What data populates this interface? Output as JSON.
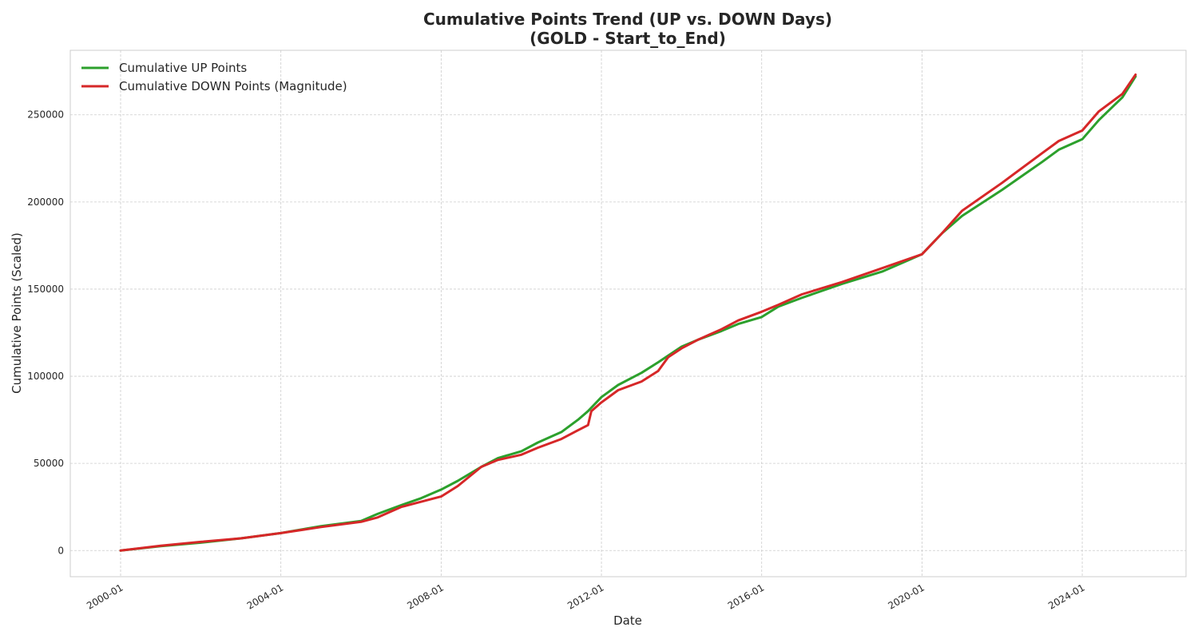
{
  "chart_data": {
    "type": "line",
    "title": "Cumulative Points Trend (UP vs. DOWN Days)",
    "subtitle": "(GOLD - Start_to_End)",
    "xlabel": "Date",
    "ylabel": "Cumulative Points (Scaled)",
    "x_range": [
      "2000-01-01",
      "2025-06-15"
    ],
    "ylim": [
      -15000,
      287000
    ],
    "grid": true,
    "legend_position": "top-left",
    "x_ticks": [
      {
        "date": "2000-01-01",
        "label": "2000-01"
      },
      {
        "date": "2004-01-01",
        "label": "2004-01"
      },
      {
        "date": "2008-01-01",
        "label": "2008-01"
      },
      {
        "date": "2012-01-01",
        "label": "2012-01"
      },
      {
        "date": "2016-01-01",
        "label": "2016-01"
      },
      {
        "date": "2020-01-01",
        "label": "2020-01"
      },
      {
        "date": "2024-01-01",
        "label": "2024-01"
      }
    ],
    "y_ticks": [
      {
        "value": 0,
        "label": "0"
      },
      {
        "value": 50000,
        "label": "50000"
      },
      {
        "value": 100000,
        "label": "100000"
      },
      {
        "value": 150000,
        "label": "150000"
      },
      {
        "value": 200000,
        "label": "200000"
      },
      {
        "value": 250000,
        "label": "250000"
      }
    ],
    "series": [
      {
        "name": "Cumulative UP Points",
        "color": "#2ca02c",
        "points": [
          [
            "2000-01-01",
            0
          ],
          [
            "2001-01-01",
            2500
          ],
          [
            "2002-01-01",
            4500
          ],
          [
            "2003-01-01",
            7000
          ],
          [
            "2004-01-01",
            10000
          ],
          [
            "2005-01-01",
            14000
          ],
          [
            "2006-01-01",
            17000
          ],
          [
            "2006-06-01",
            21000
          ],
          [
            "2007-01-01",
            26000
          ],
          [
            "2007-07-01",
            30000
          ],
          [
            "2008-01-01",
            35000
          ],
          [
            "2008-06-01",
            40000
          ],
          [
            "2009-01-01",
            48000
          ],
          [
            "2009-06-01",
            53000
          ],
          [
            "2010-01-01",
            57000
          ],
          [
            "2010-06-01",
            62000
          ],
          [
            "2011-01-01",
            68000
          ],
          [
            "2011-06-01",
            75000
          ],
          [
            "2011-09-01",
            80000
          ],
          [
            "2012-01-01",
            88000
          ],
          [
            "2012-06-01",
            95000
          ],
          [
            "2013-01-01",
            102000
          ],
          [
            "2013-06-01",
            108000
          ],
          [
            "2014-01-01",
            117000
          ],
          [
            "2014-06-01",
            121000
          ],
          [
            "2015-01-01",
            126000
          ],
          [
            "2015-06-01",
            130000
          ],
          [
            "2016-01-01",
            134000
          ],
          [
            "2016-06-01",
            140000
          ],
          [
            "2017-01-01",
            145000
          ],
          [
            "2018-01-01",
            153000
          ],
          [
            "2019-01-01",
            160000
          ],
          [
            "2020-01-01",
            170000
          ],
          [
            "2020-07-01",
            182000
          ],
          [
            "2021-01-01",
            192000
          ],
          [
            "2022-01-01",
            207000
          ],
          [
            "2023-01-01",
            223000
          ],
          [
            "2023-06-01",
            230000
          ],
          [
            "2024-01-01",
            236000
          ],
          [
            "2024-06-01",
            247000
          ],
          [
            "2025-01-01",
            260000
          ],
          [
            "2025-05-01",
            272000
          ]
        ]
      },
      {
        "name": "Cumulative DOWN Points (Magnitude)",
        "color": "#d62728",
        "points": [
          [
            "2000-01-01",
            0
          ],
          [
            "2001-01-01",
            2800
          ],
          [
            "2002-01-01",
            5000
          ],
          [
            "2003-01-01",
            7000
          ],
          [
            "2004-01-01",
            10000
          ],
          [
            "2005-01-01",
            13500
          ],
          [
            "2006-01-01",
            16500
          ],
          [
            "2006-06-01",
            19000
          ],
          [
            "2007-01-01",
            25000
          ],
          [
            "2007-07-01",
            28000
          ],
          [
            "2008-01-01",
            31000
          ],
          [
            "2008-06-01",
            37000
          ],
          [
            "2009-01-01",
            48000
          ],
          [
            "2009-06-01",
            52000
          ],
          [
            "2010-01-01",
            55000
          ],
          [
            "2010-06-01",
            59000
          ],
          [
            "2011-01-01",
            64000
          ],
          [
            "2011-06-01",
            69000
          ],
          [
            "2011-09-01",
            72000
          ],
          [
            "2011-10-01",
            80000
          ],
          [
            "2012-01-01",
            85000
          ],
          [
            "2012-06-01",
            92000
          ],
          [
            "2013-01-01",
            97000
          ],
          [
            "2013-06-01",
            103000
          ],
          [
            "2013-09-01",
            111000
          ],
          [
            "2014-01-01",
            116000
          ],
          [
            "2014-06-01",
            121000
          ],
          [
            "2015-01-01",
            127000
          ],
          [
            "2015-06-01",
            132000
          ],
          [
            "2016-01-01",
            137000
          ],
          [
            "2016-06-01",
            141000
          ],
          [
            "2017-01-01",
            147000
          ],
          [
            "2018-01-01",
            154000
          ],
          [
            "2019-01-01",
            162000
          ],
          [
            "2020-01-01",
            170000
          ],
          [
            "2020-07-01",
            182000
          ],
          [
            "2021-01-01",
            195000
          ],
          [
            "2022-01-01",
            211000
          ],
          [
            "2023-01-01",
            228000
          ],
          [
            "2023-06-01",
            235000
          ],
          [
            "2024-01-01",
            241000
          ],
          [
            "2024-06-01",
            252000
          ],
          [
            "2025-01-01",
            262000
          ],
          [
            "2025-05-01",
            273000
          ]
        ]
      }
    ]
  }
}
